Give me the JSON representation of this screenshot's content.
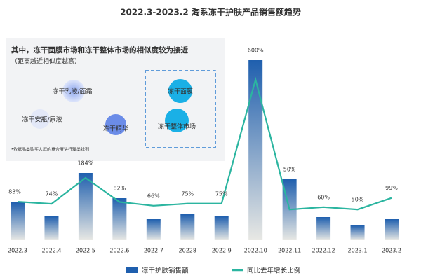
{
  "chart_data": {
    "type": "bar+line",
    "title": "2022.3-2023.2 淘系冻干护肤产品销售额趋势",
    "categories": [
      "2022.3",
      "2022.4",
      "2022.5",
      "2022.6",
      "2022.7",
      "20228",
      "2022.9",
      "2022.10",
      "2022.11",
      "2022.12",
      "2023.1",
      "2023.2"
    ],
    "series": [
      {
        "name": "冻干护肤销售额",
        "color": "#1f5fae",
        "type": "bar",
        "values": [
          54,
          34,
          96,
          60,
          30,
          37,
          34,
          257,
          87,
          33,
          21,
          30
        ]
      },
      {
        "name": "同比去年增长比例",
        "color": "#2bb5a0",
        "type": "line",
        "axis": "y2",
        "values": [
          83,
          74,
          184,
          82,
          66,
          75,
          75,
          600,
          50,
          60,
          50,
          99
        ],
        "value_labels": [
          "83%",
          "74%",
          "184%",
          "82%",
          "66%",
          "75%",
          "75%",
          "600%",
          "50%",
          "60%",
          "50%",
          "99%"
        ]
      }
    ],
    "ylim": [
      0,
      283
    ],
    "y2lim": [
      -80,
      760
    ],
    "inset": {
      "title": "其中，冻干面膜市场和冻干整体市场的相似度较为接近",
      "subtitle": "（距离越近相似度越高）",
      "labels": [
        "冻干乳液/面霜",
        "冻干安瓶/原液",
        "冻干精华",
        "冻干面膜",
        "冻干整体市场"
      ],
      "note": "*依据品类购买人群的重合度进行聚类排列"
    }
  }
}
